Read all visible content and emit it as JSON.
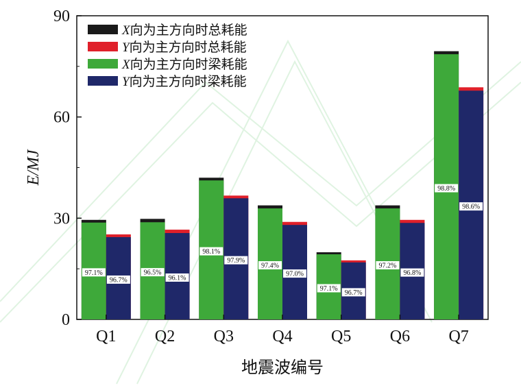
{
  "chart_data": {
    "type": "bar",
    "ylabel": "E/MJ",
    "xlabel": "地震波编号",
    "ylim": [
      0,
      90
    ],
    "yticks": [
      0,
      30,
      60,
      90
    ],
    "categories": [
      "Q1",
      "Q2",
      "Q3",
      "Q4",
      "Q5",
      "Q6",
      "Q7"
    ],
    "legend_position": "top-left",
    "series": [
      {
        "name": "X向为主方向时总耗能",
        "color": "#1a1a1a",
        "values": [
          29.5,
          29.8,
          42.0,
          33.8,
          19.9,
          33.8,
          79.5
        ]
      },
      {
        "name": "Y向为主方向时总耗能",
        "color": "#e0202a",
        "values": [
          25.2,
          26.6,
          36.7,
          28.9,
          17.5,
          29.5,
          68.8
        ]
      },
      {
        "name": "X向为主方向时梁耗能",
        "color": "#3ea93a",
        "values": [
          28.7,
          28.8,
          41.2,
          32.9,
          19.3,
          32.9,
          78.6
        ]
      },
      {
        "name": "Y向为主方向时梁耗能",
        "color": "#1f2869",
        "values": [
          24.4,
          25.6,
          35.9,
          28.0,
          16.9,
          28.6,
          67.8
        ]
      }
    ],
    "x_percent_labels": [
      "97.1%",
      "96.5%",
      "98.1%",
      "97.4%",
      "97.1%",
      "97.2%",
      "98.8%"
    ],
    "y_percent_labels": [
      "96.7%",
      "96.1%",
      "97.9%",
      "97.0%",
      "96.7%",
      "96.8%",
      "98.6%"
    ]
  }
}
